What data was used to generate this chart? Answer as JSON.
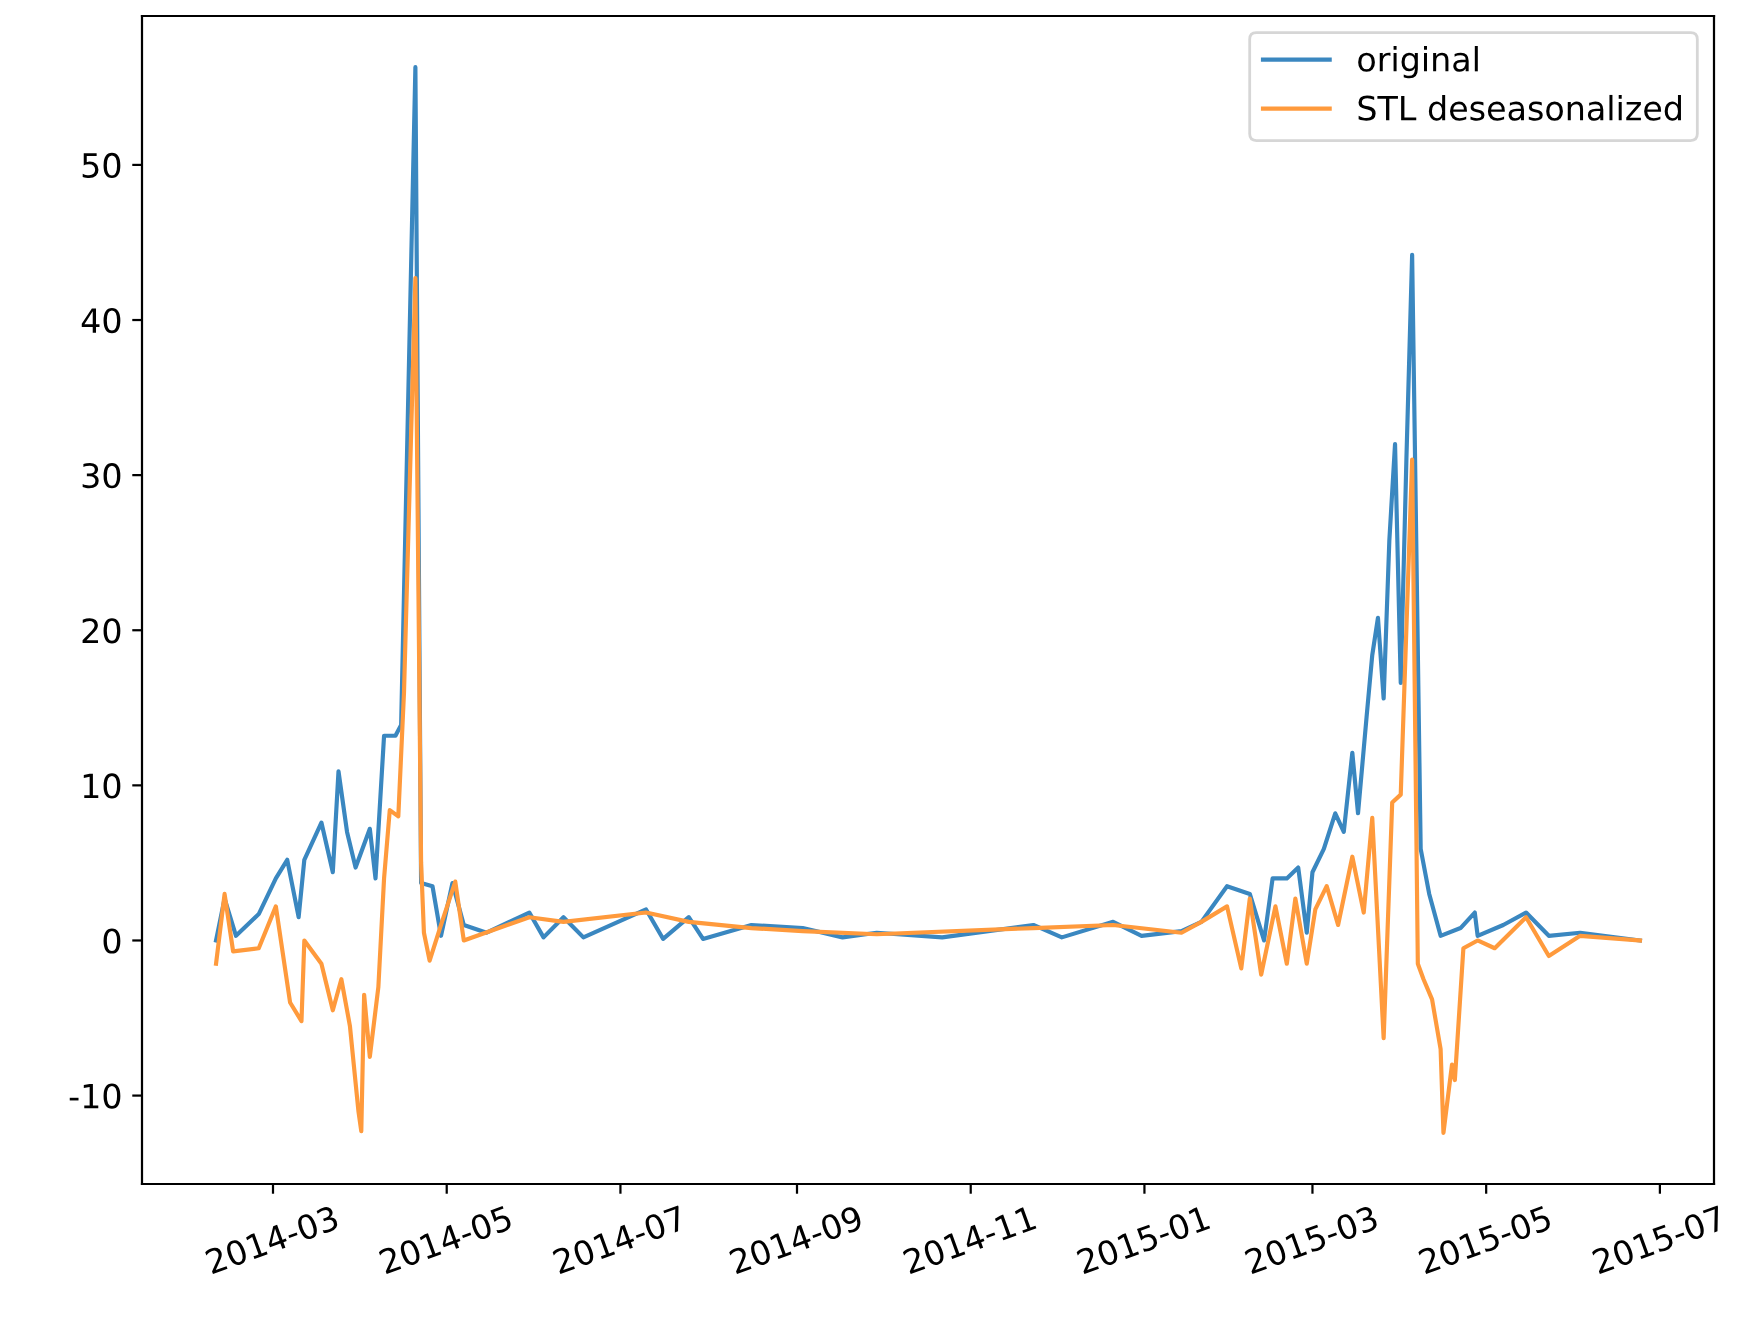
{
  "chart_data": {
    "type": "line",
    "xlim": [
      "2014-01-14",
      "2015-07-20"
    ],
    "ylim": [
      -15.7,
      59.6
    ],
    "yticks": [
      -10,
      0,
      10,
      20,
      30,
      40,
      50
    ],
    "xticks": [
      {
        "value": "2014-03-01",
        "label": "2014-03"
      },
      {
        "value": "2014-05-01",
        "label": "2014-05"
      },
      {
        "value": "2014-07-01",
        "label": "2014-07"
      },
      {
        "value": "2014-09-01",
        "label": "2014-09"
      },
      {
        "value": "2014-11-01",
        "label": "2014-11"
      },
      {
        "value": "2015-01-01",
        "label": "2015-01"
      },
      {
        "value": "2015-03-01",
        "label": "2015-03"
      },
      {
        "value": "2015-05-01",
        "label": "2015-05"
      },
      {
        "value": "2015-07-01",
        "label": "2015-07"
      }
    ],
    "legend": "top right",
    "grid": false,
    "marker": "none",
    "line_style": "solid",
    "series": [
      {
        "name": "original",
        "color": "#3a87c0",
        "x": [
          "2014-02-09",
          "2014-02-12",
          "2014-02-16",
          "2014-02-24",
          "2014-03-02",
          "2014-03-06",
          "2014-03-10",
          "2014-03-12",
          "2014-03-18",
          "2014-03-22",
          "2014-03-24",
          "2014-03-27",
          "2014-03-30",
          "2014-04-04",
          "2014-04-06",
          "2014-04-09",
          "2014-04-13",
          "2014-04-15",
          "2014-04-20",
          "2014-04-22",
          "2014-04-26",
          "2014-04-29",
          "2014-05-03",
          "2014-05-07",
          "2014-05-15",
          "2014-05-30",
          "2014-06-04",
          "2014-06-11",
          "2014-06-18",
          "2014-07-10",
          "2014-07-16",
          "2014-07-25",
          "2014-07-30",
          "2014-08-16",
          "2014-09-03",
          "2014-09-17",
          "2014-09-29",
          "2014-10-22",
          "2014-11-23",
          "2014-12-03",
          "2014-12-21",
          "2014-12-31",
          "2015-01-14",
          "2015-01-21",
          "2015-01-30",
          "2015-02-07",
          "2015-02-12",
          "2015-02-15",
          "2015-02-20",
          "2015-02-24",
          "2015-02-27",
          "2015-03-01",
          "2015-03-05",
          "2015-03-09",
          "2015-03-12",
          "2015-03-15",
          "2015-03-17",
          "2015-03-20",
          "2015-03-22",
          "2015-03-24",
          "2015-03-26",
          "2015-03-28",
          "2015-03-30",
          "2015-04-01",
          "2015-04-03",
          "2015-04-05",
          "2015-04-08",
          "2015-04-11",
          "2015-04-15",
          "2015-04-22",
          "2015-04-27",
          "2015-04-28",
          "2015-05-07",
          "2015-05-15",
          "2015-05-23",
          "2015-06-03",
          "2015-06-24"
        ],
        "values": [
          0,
          2.7,
          0.3,
          1.7,
          4,
          5.2,
          1.5,
          5.2,
          7.6,
          4.4,
          10.9,
          7,
          4.7,
          7.2,
          4,
          13.2,
          13.2,
          13.9,
          56.3,
          3.7,
          3.5,
          0.3,
          3.7,
          1,
          0.5,
          1.8,
          0.2,
          1.5,
          0.2,
          2,
          0.1,
          1.5,
          0.1,
          1,
          0.8,
          0.2,
          0.5,
          0.2,
          1,
          0.2,
          1.2,
          0.3,
          0.6,
          1.2,
          3.5,
          3,
          0,
          4,
          4,
          4.7,
          0.5,
          4.4,
          5.9,
          8.2,
          7,
          12.1,
          8.2,
          14.4,
          18.4,
          20.8,
          15.6,
          25.8,
          32,
          16.6,
          31.1,
          44.2,
          5.9,
          3,
          0.3,
          0.8,
          1.8,
          0.3,
          1,
          1.8,
          0.3,
          0.5,
          0
        ]
      },
      {
        "name": "STL deseasonalized",
        "color": "#ff9a3c",
        "x": [
          "2014-02-09",
          "2014-02-12",
          "2014-02-15",
          "2014-02-24",
          "2014-03-02",
          "2014-03-07",
          "2014-03-11",
          "2014-03-12",
          "2014-03-18",
          "2014-03-22",
          "2014-03-25",
          "2014-03-28",
          "2014-03-31",
          "2014-04-01",
          "2014-04-02",
          "2014-04-04",
          "2014-04-07",
          "2014-04-09",
          "2014-04-11",
          "2014-04-14",
          "2014-04-16",
          "2014-04-20",
          "2014-04-22",
          "2014-04-23",
          "2014-04-25",
          "2014-04-29",
          "2014-05-04",
          "2014-05-07",
          "2014-05-30",
          "2014-06-11",
          "2014-07-10",
          "2014-07-25",
          "2014-08-16",
          "2014-09-03",
          "2014-09-29",
          "2014-11-23",
          "2014-12-21",
          "2015-01-14",
          "2015-01-21",
          "2015-01-30",
          "2015-02-04",
          "2015-02-07",
          "2015-02-11",
          "2015-02-16",
          "2015-02-20",
          "2015-02-23",
          "2015-02-27",
          "2015-03-02",
          "2015-03-06",
          "2015-03-10",
          "2015-03-15",
          "2015-03-19",
          "2015-03-22",
          "2015-03-26",
          "2015-03-29",
          "2015-04-01",
          "2015-04-05",
          "2015-04-07",
          "2015-04-09",
          "2015-04-12",
          "2015-04-15",
          "2015-04-16",
          "2015-04-19",
          "2015-04-20",
          "2015-04-23",
          "2015-04-28",
          "2015-05-04",
          "2015-05-15",
          "2015-05-23",
          "2015-06-03",
          "2015-06-24"
        ],
        "values": [
          -1.5,
          3,
          -0.7,
          -0.5,
          2.2,
          -4,
          -5.2,
          0,
          -1.5,
          -4.5,
          -2.5,
          -5.5,
          -11,
          -12.3,
          -3.5,
          -7.5,
          -3,
          4,
          8.4,
          8,
          16,
          42.7,
          5,
          0.5,
          -1.3,
          1,
          3.8,
          0,
          1.5,
          1.2,
          1.8,
          1.2,
          0.8,
          0.6,
          0.4,
          0.8,
          1,
          0.5,
          1.2,
          2.2,
          -1.8,
          2.7,
          -2.2,
          2.2,
          -1.5,
          2.7,
          -1.5,
          2,
          3.5,
          1,
          5.4,
          1.8,
          7.9,
          -6.3,
          8.9,
          9.4,
          31,
          -1.5,
          -2.5,
          -3.8,
          -7,
          -12.4,
          -8,
          -9,
          -0.5,
          0,
          -0.5,
          1.5,
          -1,
          0.3,
          0
        ]
      }
    ]
  }
}
